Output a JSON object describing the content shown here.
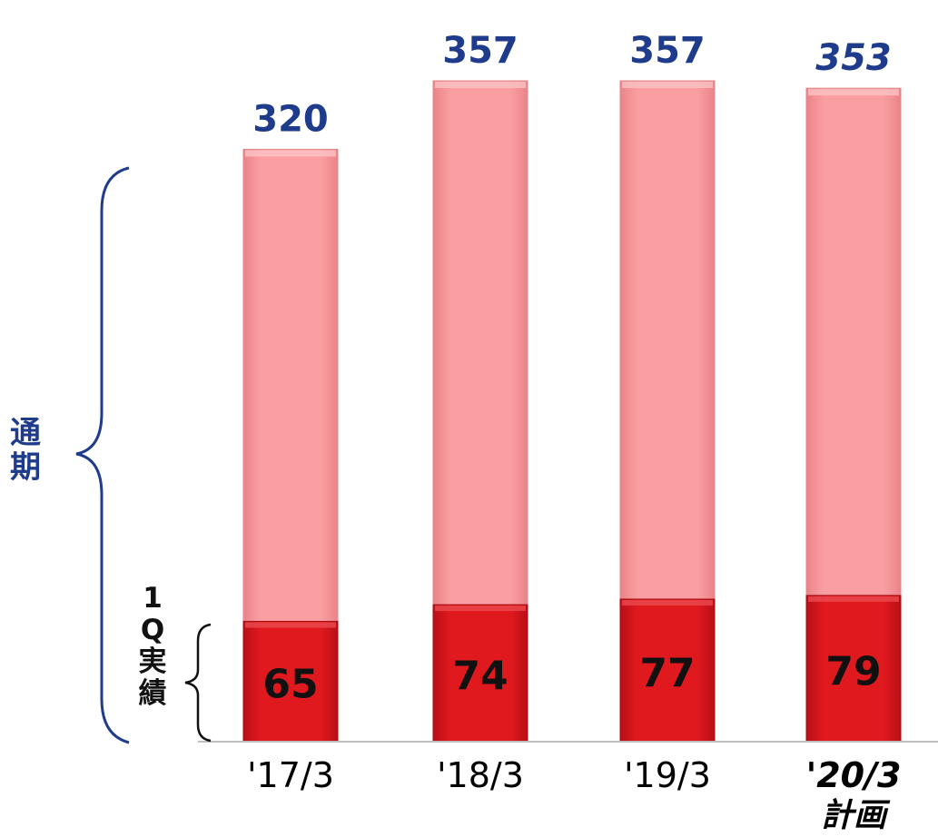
{
  "chart_data": {
    "type": "bar",
    "stacked": true,
    "categories": [
      "'17/3",
      "'18/3",
      "'19/3",
      "'20/3"
    ],
    "category_sublabels": [
      "",
      "",
      "",
      "計画"
    ],
    "italic_categories": [
      3
    ],
    "series": [
      {
        "name": "1Q実績",
        "values": [
          65,
          74,
          77,
          79
        ],
        "color": "#d9161d"
      },
      {
        "name": "通期",
        "values": [
          255,
          283,
          280,
          274
        ],
        "color": "#f7979b"
      }
    ],
    "totals": [
      320,
      357,
      357,
      353
    ],
    "first_quarter_labels": [
      "65",
      "74",
      "77",
      "79"
    ],
    "total_labels": [
      "320",
      "357",
      "357",
      "353"
    ],
    "ylim": [
      0,
      357
    ],
    "grid": false,
    "legend": "none"
  },
  "annotations": {
    "annual_label": "通期",
    "q1_label": "1Q実績",
    "annual_color": "#1f3c8c",
    "q1_color": "#111111",
    "total_label_color": "#1f3c8c"
  }
}
